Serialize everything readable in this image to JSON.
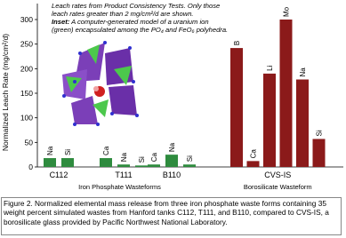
{
  "chart_data": {
    "type": "bar",
    "ylabel": "Normalized Leach Rate (mg/cm²/d)",
    "ylim": [
      0,
      300
    ],
    "yticks": [
      0,
      50,
      100,
      150,
      200,
      250,
      300
    ],
    "note": "Leach rates from Product Consistency Tests. Only those leach rates greater than 2 mg/cm²/d are shown.",
    "inset_label": "Inset:",
    "inset_text": "A computer-generated model of a uranium ion (green) encapsulated among the PO₄ and FeO₆ polyhedra.",
    "wasteforms": [
      {
        "name": "Iron Phosphate Wasteforms",
        "color": "#2e8b3e",
        "groups": [
          {
            "name": "C112",
            "labels": [
              "Na",
              "Si"
            ],
            "values": [
              18,
              18
            ]
          },
          {
            "name": "T111",
            "labels": [
              "Ca",
              "Na",
              "Si"
            ],
            "values": [
              18,
              5,
              3
            ]
          },
          {
            "name": "B110",
            "labels": [
              "Ca",
              "Na",
              "Si"
            ],
            "values": [
              5,
              25,
              5
            ]
          }
        ]
      },
      {
        "name": "Borosilicate Wasteform",
        "color": "#8b1a1a",
        "groups": [
          {
            "name": "CVS-IS",
            "labels": [
              "B",
              "Ca",
              "Li",
              "Mo",
              "Na",
              "Si"
            ],
            "values": [
              242,
              12,
              190,
              300,
              178,
              57
            ]
          }
        ]
      }
    ]
  },
  "caption": "Figure 2. Normalized elemental mass release from three iron phosphate waste forms containing 35 weight percent simulated wastes from Hanford tanks C112, T111, and B110, compared to CVS-IS, a borosilicate glass provided by Pacific Northwest National Laboratory."
}
